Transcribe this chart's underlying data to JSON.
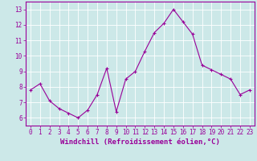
{
  "x": [
    0,
    1,
    2,
    3,
    4,
    5,
    6,
    7,
    8,
    9,
    10,
    11,
    12,
    13,
    14,
    15,
    16,
    17,
    18,
    19,
    20,
    21,
    22,
    23
  ],
  "y": [
    7.8,
    8.2,
    7.1,
    6.6,
    6.3,
    6.0,
    6.5,
    7.5,
    9.2,
    6.4,
    8.5,
    9.0,
    10.3,
    11.5,
    12.1,
    13.0,
    12.2,
    11.4,
    9.4,
    9.1,
    8.8,
    8.5,
    7.5,
    7.8
  ],
  "line_color": "#990099",
  "marker": "+",
  "bg_color": "#cce8e8",
  "grid_color": "#ffffff",
  "xlabel": "Windchill (Refroidissement éolien,°C)",
  "xlabel_color": "#990099",
  "tick_color": "#990099",
  "xlim": [
    -0.5,
    23.5
  ],
  "ylim": [
    5.5,
    13.5
  ],
  "yticks": [
    6,
    7,
    8,
    9,
    10,
    11,
    12,
    13
  ],
  "xticks": [
    0,
    1,
    2,
    3,
    4,
    5,
    6,
    7,
    8,
    9,
    10,
    11,
    12,
    13,
    14,
    15,
    16,
    17,
    18,
    19,
    20,
    21,
    22,
    23
  ],
  "spine_color": "#990099",
  "tick_fontsize": 5.5,
  "xlabel_fontsize": 6.5,
  "marker_size": 3,
  "line_width": 0.8
}
